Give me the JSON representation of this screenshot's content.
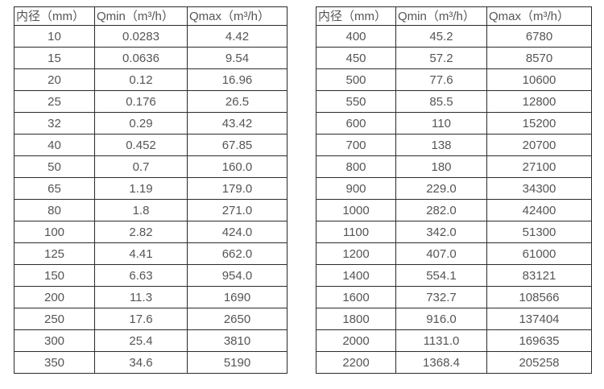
{
  "colors": {
    "background": "#ffffff",
    "grid_border": "#2b2b2b",
    "text": "#555555"
  },
  "tables": [
    {
      "name": "flow-range-small-diameters",
      "headers": [
        "内径（mm）",
        "Qmin（m³/h）",
        "Qmax（m³/h）"
      ],
      "rows": [
        [
          "10",
          "0.0283",
          "4.42"
        ],
        [
          "15",
          "0.0636",
          "9.54"
        ],
        [
          "20",
          "0.12",
          "16.96"
        ],
        [
          "25",
          "0.176",
          "26.5"
        ],
        [
          "32",
          "0.29",
          "43.42"
        ],
        [
          "40",
          "0.452",
          "67.85"
        ],
        [
          "50",
          "0.7",
          "160.0"
        ],
        [
          "65",
          "1.19",
          "179.0"
        ],
        [
          "80",
          "1.8",
          "271.0"
        ],
        [
          "100",
          "2.82",
          "424.0"
        ],
        [
          "125",
          "4.41",
          "662.0"
        ],
        [
          "150",
          "6.63",
          "954.0"
        ],
        [
          "200",
          "11.3",
          "1690"
        ],
        [
          "250",
          "17.6",
          "2650"
        ],
        [
          "300",
          "25.4",
          "3810"
        ],
        [
          "350",
          "34.6",
          "5190"
        ]
      ]
    },
    {
      "name": "flow-range-large-diameters",
      "headers": [
        "内径（mm）",
        "Qmin（m³/h）",
        "Qmax（m³/h）"
      ],
      "rows": [
        [
          "400",
          "45.2",
          "6780"
        ],
        [
          "450",
          "57.2",
          "8570"
        ],
        [
          "500",
          "77.6",
          "10600"
        ],
        [
          "550",
          "85.5",
          "12800"
        ],
        [
          "600",
          "110",
          "15200"
        ],
        [
          "700",
          "138",
          "20700"
        ],
        [
          "800",
          "180",
          "27100"
        ],
        [
          "900",
          "229.0",
          "34300"
        ],
        [
          "1000",
          "282.0",
          "42400"
        ],
        [
          "1100",
          "342.0",
          "51300"
        ],
        [
          "1200",
          "407.0",
          "61000"
        ],
        [
          "1400",
          "554.1",
          "83121"
        ],
        [
          "1600",
          "732.7",
          "108566"
        ],
        [
          "1800",
          "916.0",
          "137404"
        ],
        [
          "2000",
          "1131.0",
          "169635"
        ],
        [
          "2200",
          "1368.4",
          "205258"
        ]
      ]
    }
  ]
}
